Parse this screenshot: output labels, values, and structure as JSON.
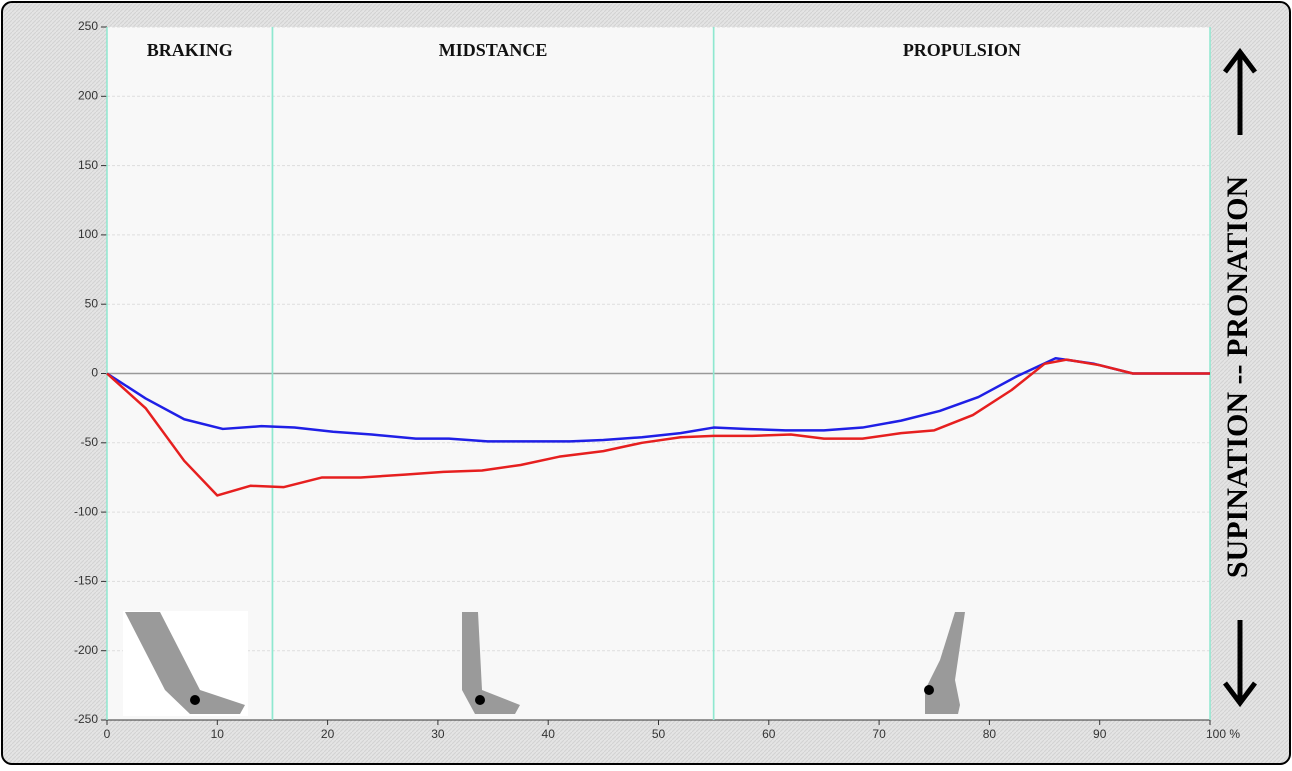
{
  "chart_data": {
    "type": "line",
    "side_label": "SUPINATION -- PRONATION",
    "phases": [
      {
        "label": "BRAKING",
        "start": 0,
        "end": 15
      },
      {
        "label": "MIDSTANCE",
        "start": 15,
        "end": 55
      },
      {
        "label": "PROPULSION",
        "start": 55,
        "end": 100
      }
    ],
    "xlim": [
      0,
      100
    ],
    "xticks": [
      0,
      10,
      20,
      30,
      40,
      50,
      60,
      70,
      80,
      90,
      {
        "value": 100,
        "label": "100 %"
      }
    ],
    "ylim": [
      -250,
      250
    ],
    "yticks": [
      -250,
      -200,
      -150,
      -100,
      -50,
      0,
      50,
      100,
      150,
      200,
      250
    ],
    "grid": true,
    "series": [
      {
        "color": "#1f1fe6",
        "x": [
          0,
          3.5,
          7,
          10.5,
          14,
          17,
          20.5,
          24,
          28,
          31,
          34.5,
          38,
          42,
          45,
          48.5,
          52,
          55,
          58,
          61.5,
          65,
          68.5,
          72,
          75.5,
          79,
          82.5,
          86,
          89.5,
          93,
          100
        ],
        "values": [
          0,
          -18,
          -33,
          -40,
          -38,
          -39,
          -42,
          -44,
          -47,
          -47,
          -49,
          -49,
          -49,
          -48,
          -46,
          -43,
          -39,
          -40,
          -41,
          -41,
          -39,
          -34,
          -27,
          -17,
          -2,
          11,
          7,
          0,
          0
        ]
      },
      {
        "color": "#e61f1f",
        "x": [
          0,
          3.5,
          7,
          10,
          13,
          16,
          19.5,
          23,
          27,
          30.5,
          34,
          37.5,
          41,
          45,
          48.5,
          52,
          55,
          58.5,
          62,
          65,
          68.5,
          72,
          75,
          78.5,
          82,
          85,
          87,
          90,
          93,
          100
        ],
        "values": [
          0,
          -25,
          -63,
          -88,
          -81,
          -82,
          -75,
          -75,
          -73,
          -71,
          -70,
          -66,
          -60,
          -56,
          -50,
          -46,
          -45,
          -45,
          -44,
          -47,
          -47,
          -43,
          -41,
          -30,
          -12,
          7,
          10,
          6,
          0,
          0
        ]
      }
    ]
  }
}
